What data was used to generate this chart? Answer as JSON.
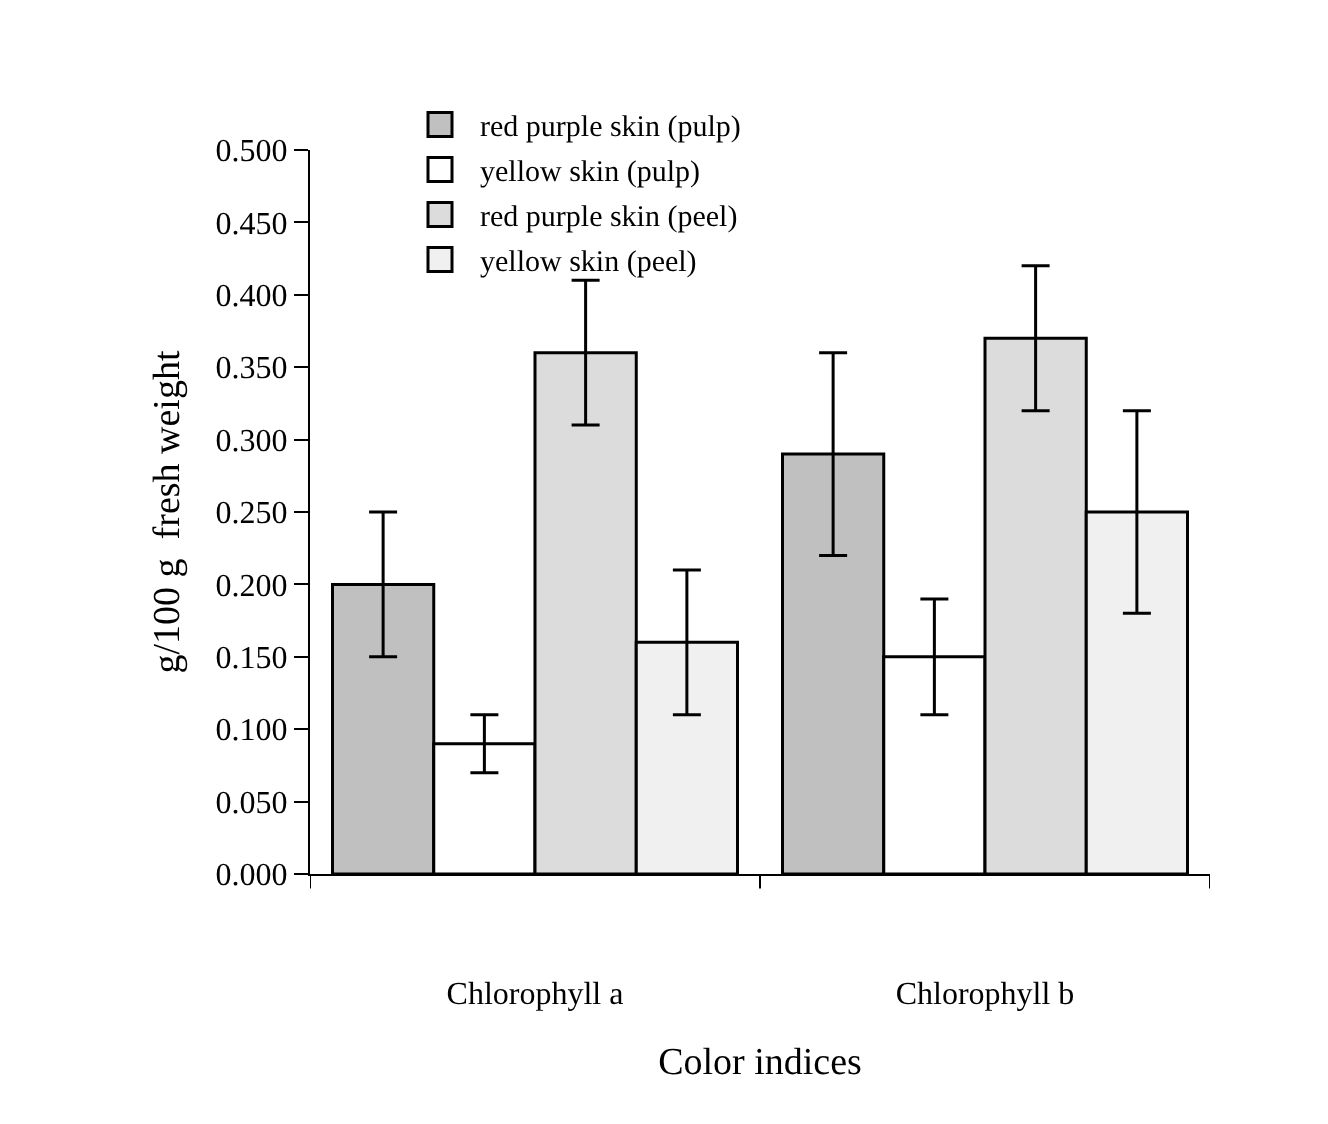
{
  "chart_data": {
    "type": "bar",
    "xlabel": "Color indices",
    "ylabel": "g/100 g  fresh weight",
    "categories": [
      "Chlorophyll a",
      "Chlorophyll b"
    ],
    "series": [
      {
        "name": "red purple skin (pulp)",
        "color": "#c0c0c0",
        "values": [
          0.2,
          0.29
        ],
        "errors": [
          0.05,
          [
            0.22,
            0.36
          ]
        ]
      },
      {
        "name": "yellow skin (pulp)",
        "color": "#ffffff",
        "values": [
          0.09,
          0.15
        ],
        "errors": [
          [
            0.07,
            0.11
          ],
          [
            0.11,
            0.19
          ]
        ]
      },
      {
        "name": "red purple skin (peel)",
        "color": "#dcdcdc",
        "values": [
          0.36,
          0.37
        ],
        "errors": [
          0.05,
          [
            0.32,
            0.42
          ]
        ]
      },
      {
        "name": "yellow skin (peel)",
        "color": "#f0f0f0",
        "values": [
          0.16,
          0.25
        ],
        "errors": [
          [
            0.11,
            0.21
          ],
          [
            0.18,
            0.32
          ]
        ]
      }
    ],
    "ylim": [
      0,
      0.5
    ],
    "yticks": [
      {
        "value": 0,
        "label": "0.000"
      },
      {
        "value": 0.05,
        "label": "0.050"
      },
      {
        "value": 0.1,
        "label": "0.100"
      },
      {
        "value": 0.15,
        "label": "0.150"
      },
      {
        "value": 0.2,
        "label": "0.200"
      },
      {
        "value": 0.25,
        "label": "0.250"
      },
      {
        "value": 0.3,
        "label": "0.300"
      },
      {
        "value": 0.35,
        "label": "0.350"
      },
      {
        "value": 0.4,
        "label": "0.400"
      },
      {
        "value": 0.45,
        "label": "0.450"
      },
      {
        "value": 0.5,
        "label": "0.500"
      }
    ],
    "legend": "top"
  }
}
